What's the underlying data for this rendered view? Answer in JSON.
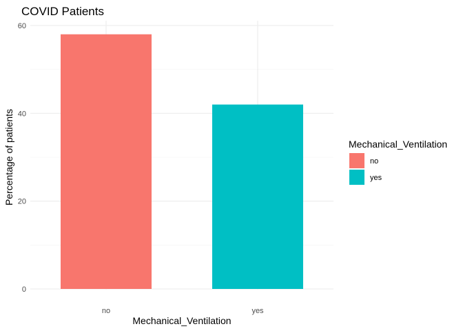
{
  "chart_data": {
    "type": "bar",
    "title": "COVID Patients",
    "xlabel": "Mechanical_Ventilation",
    "ylabel": "Percentage of patients",
    "categories": [
      "no",
      "yes"
    ],
    "values": [
      58,
      42
    ],
    "colors": [
      "#F8766D",
      "#00BFC4"
    ],
    "ylim": [
      0,
      60
    ],
    "yticks": [
      0,
      20,
      40,
      60
    ],
    "grid": true,
    "legend": {
      "title": "Mechanical_Ventilation",
      "placement": "right",
      "entries": [
        "no",
        "yes"
      ]
    }
  }
}
